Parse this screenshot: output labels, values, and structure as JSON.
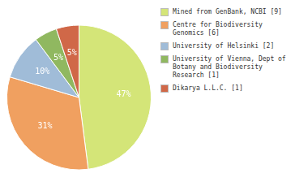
{
  "chart_data": {
    "type": "pie",
    "categories": [
      "Mined from GenBank, NCBI [9]",
      "Centre for Biodiversity\nGenomics [6]",
      "University of Helsinki [2]",
      "University of Vienna, Dept of\nBotany and Biodiversity\nResearch [1]",
      "Dikarya L.L.C. [1]"
    ],
    "values": [
      47,
      31,
      10,
      5,
      5
    ],
    "value_labels": [
      "47%",
      "31%",
      "10%",
      "5%",
      "5%"
    ],
    "colors": [
      "#d4e578",
      "#f0a060",
      "#a0bcd8",
      "#90b860",
      "#d06848"
    ],
    "data_labels": true,
    "legend": "right"
  }
}
